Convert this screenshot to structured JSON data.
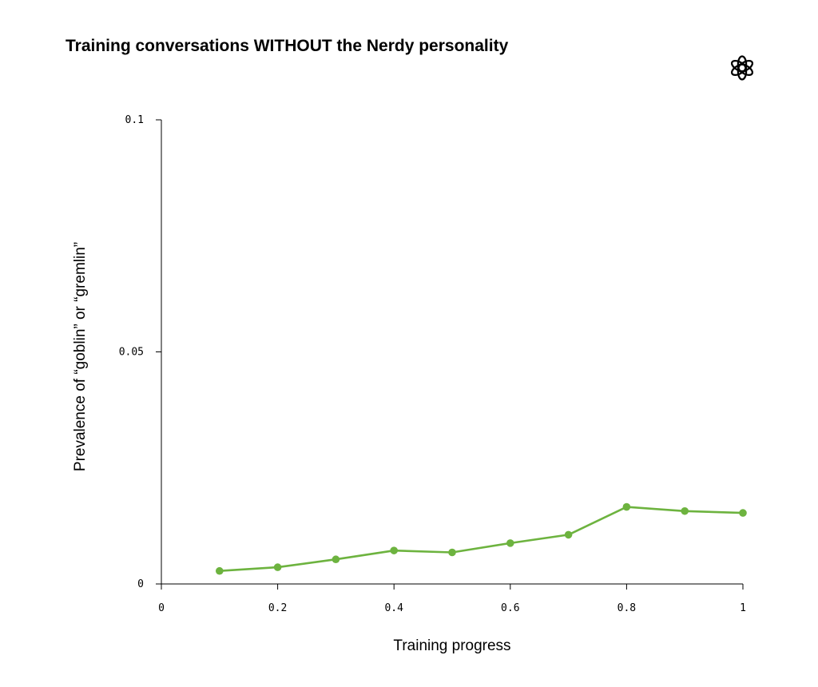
{
  "chart_data": {
    "type": "line",
    "title": "Training conversations WITHOUT the Nerdy personality",
    "xlabel": "Training progress",
    "ylabel": "Prevalence of “goblin” or “gremlin”",
    "xlim": [
      0,
      1
    ],
    "ylim": [
      0,
      0.1
    ],
    "x_ticks": [
      {
        "value": 0,
        "label": "0"
      },
      {
        "value": 0.2,
        "label": "0.2"
      },
      {
        "value": 0.4,
        "label": "0.4"
      },
      {
        "value": 0.6,
        "label": "0.6"
      },
      {
        "value": 0.8,
        "label": "0.8"
      },
      {
        "value": 1,
        "label": "1"
      }
    ],
    "y_ticks": [
      {
        "value": 0,
        "label": "0"
      },
      {
        "value": 0.05,
        "label": "0.05"
      },
      {
        "value": 0.1,
        "label": "0.1"
      }
    ],
    "grid": false,
    "series": [
      {
        "color": "#6db33f",
        "x": [
          0.1,
          0.2,
          0.3,
          0.4,
          0.5,
          0.6,
          0.7,
          0.8,
          0.9,
          1.0
        ],
        "y": [
          0.0028,
          0.0036,
          0.0053,
          0.0072,
          0.0068,
          0.0088,
          0.0106,
          0.0166,
          0.0157,
          0.0153
        ]
      }
    ]
  },
  "logo": {
    "icon": "openai-logo-icon"
  }
}
